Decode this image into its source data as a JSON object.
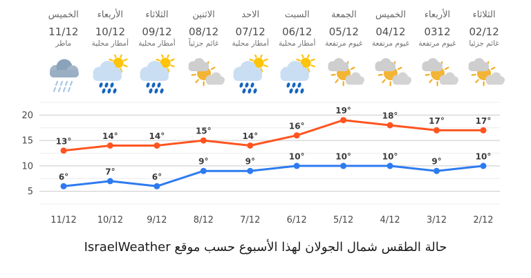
{
  "forecast": {
    "columns": [
      {
        "day": "الخميس",
        "date": "11/12",
        "condition": "ماطر",
        "icon": "rain-cloud"
      },
      {
        "day": "الأربعاء",
        "date": "10/12",
        "condition": "أمطار محلية",
        "icon": "sun-rain"
      },
      {
        "day": "الثلاثاء",
        "date": "09/12",
        "condition": "أمطار محلية",
        "icon": "sun-rain"
      },
      {
        "day": "الاثنين",
        "date": "08/12",
        "condition": "غائم جزئياً",
        "icon": "sun-clouds"
      },
      {
        "day": "الاحد",
        "date": "07/12",
        "condition": "أمطار محلية",
        "icon": "sun-rain"
      },
      {
        "day": "السبت",
        "date": "06/12",
        "condition": "أمطار محلية",
        "icon": "sun-rain"
      },
      {
        "day": "الجمعة",
        "date": "05/12",
        "condition": "غيوم مرتفعة",
        "icon": "sun-clouds"
      },
      {
        "day": "الخميس",
        "date": "04/12",
        "condition": "غيوم مرتفعة",
        "icon": "sun-clouds"
      },
      {
        "day": "الأربعاء",
        "date": "0312",
        "condition": "غيوم مرتفعة",
        "icon": "sun-clouds"
      },
      {
        "day": "الثلاثاء",
        "date": "02/12",
        "condition": "غائم جزئيا",
        "icon": "sun-clouds"
      }
    ]
  },
  "chart_data": {
    "type": "line",
    "x": [
      "11/12",
      "10/12",
      "9/12",
      "8/12",
      "7/12",
      "6/12",
      "5/12",
      "4/12",
      "3/12",
      "2/12"
    ],
    "series": [
      {
        "name": "high",
        "color": "#ff5420",
        "values": [
          13,
          14,
          14,
          15,
          14,
          16,
          19,
          18,
          17,
          17
        ]
      },
      {
        "name": "low",
        "color": "#2d7bf0",
        "values": [
          6,
          7,
          6,
          9,
          9,
          10,
          10,
          10,
          9,
          10
        ]
      }
    ],
    "unit": "°",
    "yticks": [
      5,
      10,
      15,
      20
    ],
    "ylim": [
      2.5,
      22.5
    ],
    "minor_grid_step": 2.5,
    "grid": "horizontal",
    "legend": "none",
    "title": "",
    "xlabel": "",
    "ylabel": ""
  },
  "caption": "حالة الطقس شمال الجولان لهذا الأسبوع حسب موقع IsraelWeather"
}
